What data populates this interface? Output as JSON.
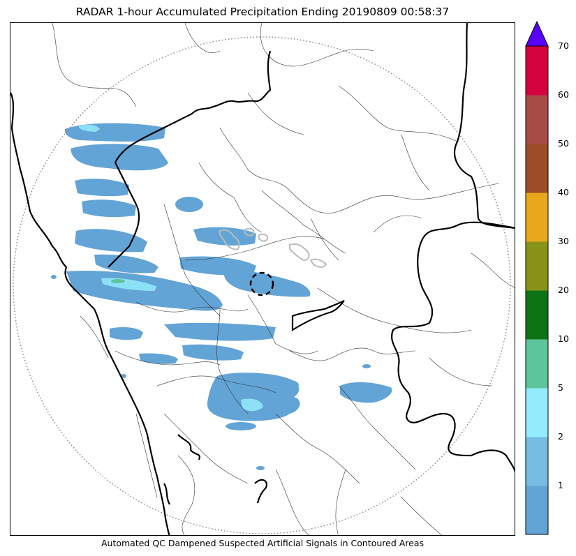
{
  "title": "RADAR 1-hour Accumulated Precipitation Ending 20190809 00:58:37",
  "caption": "Automated QC Dampened Suspected Artificial Signals in Contoured Areas",
  "colorbar": {
    "overflow_color": "#5a00ff",
    "bins": [
      {
        "color": "#63a4d6"
      },
      {
        "color": "#77bde2"
      },
      {
        "color": "#93ecfd"
      },
      {
        "color": "#5ec49c"
      },
      {
        "color": "#0f7316"
      },
      {
        "color": "#8a9319"
      },
      {
        "color": "#e8a71c"
      },
      {
        "color": "#9b4d28"
      },
      {
        "color": "#a84b44"
      },
      {
        "color": "#d5013f"
      }
    ],
    "ticks": [
      "1",
      "2",
      "5",
      "10",
      "20",
      "30",
      "40",
      "50",
      "60",
      "70"
    ]
  },
  "legend_colors": {
    "rain_light": "#63a4d6",
    "rain_moderate": "#93ecfd",
    "rain_heavy": "#5ec49c",
    "qc_contour": "#bbbbbb",
    "radar_range_ring": "#888888",
    "state_border": "#000000",
    "district_border": "#333333"
  }
}
